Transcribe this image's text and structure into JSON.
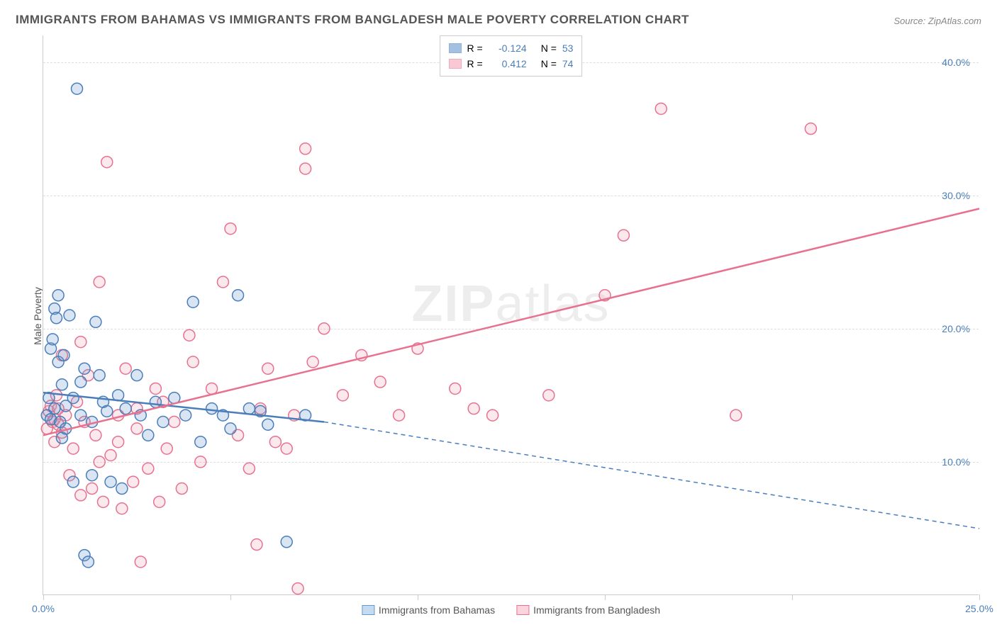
{
  "title": "IMMIGRANTS FROM BAHAMAS VS IMMIGRANTS FROM BANGLADESH MALE POVERTY CORRELATION CHART",
  "source": "Source: ZipAtlas.com",
  "ylabel": "Male Poverty",
  "watermark": {
    "bold": "ZIP",
    "light": "atlas"
  },
  "chart": {
    "type": "scatter",
    "background_color": "#ffffff",
    "grid_color": "#dddddd",
    "axis_color": "#cccccc",
    "xlim": [
      0,
      25
    ],
    "ylim": [
      0,
      42
    ],
    "xticks": [
      0,
      5,
      10,
      15,
      20,
      25
    ],
    "xtick_labels": [
      "0.0%",
      "",
      "",
      "",
      "",
      "25.0%"
    ],
    "yticks": [
      10,
      20,
      30,
      40
    ],
    "ytick_labels": [
      "10.0%",
      "20.0%",
      "30.0%",
      "40.0%"
    ],
    "tick_label_color": "#4a7ebb",
    "tick_label_fontsize": 14,
    "marker_radius": 8,
    "marker_fill_opacity": 0.25,
    "marker_stroke_width": 1.5,
    "series": [
      {
        "name": "Immigrants from Bahamas",
        "color": "#6699cc",
        "stroke": "#4a7ebb",
        "R": "-0.124",
        "N": "53",
        "line": {
          "x1": 0,
          "y1": 15.2,
          "x2": 7.5,
          "y2": 13.0,
          "width": 2.5
        },
        "line_extrapolate": {
          "x1": 7.5,
          "y1": 13.0,
          "x2": 25,
          "y2": 5.0,
          "dash": "6,5",
          "width": 1.5
        },
        "points": [
          [
            0.1,
            13.5
          ],
          [
            0.15,
            14.8
          ],
          [
            0.2,
            13.2
          ],
          [
            0.2,
            18.5
          ],
          [
            0.25,
            19.2
          ],
          [
            0.3,
            14.0
          ],
          [
            0.3,
            21.5
          ],
          [
            0.35,
            20.8
          ],
          [
            0.4,
            17.5
          ],
          [
            0.4,
            22.5
          ],
          [
            0.45,
            13.0
          ],
          [
            0.5,
            15.8
          ],
          [
            0.5,
            11.8
          ],
          [
            0.55,
            18.0
          ],
          [
            0.6,
            14.2
          ],
          [
            0.7,
            21.0
          ],
          [
            0.8,
            8.5
          ],
          [
            0.9,
            38.0
          ],
          [
            1.0,
            13.5
          ],
          [
            1.1,
            17.0
          ],
          [
            1.1,
            3.0
          ],
          [
            1.2,
            2.5
          ],
          [
            1.3,
            9.0
          ],
          [
            1.4,
            20.5
          ],
          [
            1.5,
            16.5
          ],
          [
            1.6,
            14.5
          ],
          [
            1.7,
            13.8
          ],
          [
            1.8,
            8.5
          ],
          [
            2.0,
            15.0
          ],
          [
            2.1,
            8.0
          ],
          [
            2.2,
            14.0
          ],
          [
            2.5,
            16.5
          ],
          [
            2.6,
            13.5
          ],
          [
            2.8,
            12.0
          ],
          [
            3.0,
            14.5
          ],
          [
            3.2,
            13.0
          ],
          [
            3.5,
            14.8
          ],
          [
            3.8,
            13.5
          ],
          [
            4.0,
            22.0
          ],
          [
            4.2,
            11.5
          ],
          [
            4.5,
            14.0
          ],
          [
            4.8,
            13.5
          ],
          [
            5.0,
            12.5
          ],
          [
            5.2,
            22.5
          ],
          [
            5.5,
            14.0
          ],
          [
            5.8,
            13.8
          ],
          [
            6.0,
            12.8
          ],
          [
            6.5,
            4.0
          ],
          [
            7.0,
            13.5
          ],
          [
            0.6,
            12.5
          ],
          [
            0.8,
            14.8
          ],
          [
            1.0,
            16.0
          ],
          [
            1.3,
            13.0
          ]
        ]
      },
      {
        "name": "Immigrants from Bangladesh",
        "color": "#f4a6b8",
        "stroke": "#e8718f",
        "R": "0.412",
        "N": "74",
        "line": {
          "x1": 0,
          "y1": 12.0,
          "x2": 25,
          "y2": 29.0,
          "width": 2.5
        },
        "line_extrapolate": null,
        "points": [
          [
            0.1,
            12.5
          ],
          [
            0.15,
            13.8
          ],
          [
            0.2,
            14.2
          ],
          [
            0.25,
            13.0
          ],
          [
            0.3,
            11.5
          ],
          [
            0.35,
            15.0
          ],
          [
            0.4,
            12.8
          ],
          [
            0.5,
            18.0
          ],
          [
            0.6,
            13.5
          ],
          [
            0.7,
            9.0
          ],
          [
            0.8,
            11.0
          ],
          [
            0.9,
            14.5
          ],
          [
            1.0,
            7.5
          ],
          [
            1.1,
            13.0
          ],
          [
            1.2,
            16.5
          ],
          [
            1.3,
            8.0
          ],
          [
            1.4,
            12.0
          ],
          [
            1.5,
            23.5
          ],
          [
            1.6,
            7.0
          ],
          [
            1.7,
            32.5
          ],
          [
            1.8,
            10.5
          ],
          [
            2.0,
            13.5
          ],
          [
            2.1,
            6.5
          ],
          [
            2.2,
            17.0
          ],
          [
            2.4,
            8.5
          ],
          [
            2.5,
            14.0
          ],
          [
            2.6,
            2.5
          ],
          [
            2.8,
            9.5
          ],
          [
            3.0,
            15.5
          ],
          [
            3.1,
            7.0
          ],
          [
            3.3,
            11.0
          ],
          [
            3.5,
            13.0
          ],
          [
            3.7,
            8.0
          ],
          [
            3.9,
            19.5
          ],
          [
            4.0,
            17.5
          ],
          [
            4.2,
            10.0
          ],
          [
            4.5,
            15.5
          ],
          [
            4.8,
            23.5
          ],
          [
            5.0,
            27.5
          ],
          [
            5.2,
            12.0
          ],
          [
            5.5,
            9.5
          ],
          [
            5.7,
            3.8
          ],
          [
            5.8,
            14.0
          ],
          [
            6.0,
            17.0
          ],
          [
            6.2,
            11.5
          ],
          [
            6.5,
            11.0
          ],
          [
            6.7,
            13.5
          ],
          [
            6.8,
            0.5
          ],
          [
            7.0,
            32.0
          ],
          [
            7.0,
            33.5
          ],
          [
            7.2,
            17.5
          ],
          [
            7.5,
            20.0
          ],
          [
            8.0,
            15.0
          ],
          [
            8.5,
            18.0
          ],
          [
            9.0,
            16.0
          ],
          [
            9.5,
            13.5
          ],
          [
            10.0,
            18.5
          ],
          [
            11.0,
            15.5
          ],
          [
            11.5,
            14.0
          ],
          [
            12.0,
            13.5
          ],
          [
            13.5,
            15.0
          ],
          [
            15.0,
            22.5
          ],
          [
            15.5,
            27.0
          ],
          [
            16.5,
            36.5
          ],
          [
            18.5,
            13.5
          ],
          [
            20.5,
            35.0
          ],
          [
            1.0,
            19.0
          ],
          [
            1.5,
            10.0
          ],
          [
            2.0,
            11.5
          ],
          [
            2.5,
            12.5
          ],
          [
            3.2,
            14.5
          ],
          [
            0.4,
            14.0
          ],
          [
            0.3,
            13.2
          ],
          [
            0.5,
            12.2
          ]
        ]
      }
    ]
  },
  "legend_stats": {
    "label_R": "R =",
    "label_N": "N ="
  },
  "bottom_legend": [
    {
      "label": "Immigrants from Bahamas",
      "fill": "#c7dbf0",
      "stroke": "#6699cc"
    },
    {
      "label": "Immigrants from Bangladesh",
      "fill": "#fbd5de",
      "stroke": "#e8718f"
    }
  ]
}
